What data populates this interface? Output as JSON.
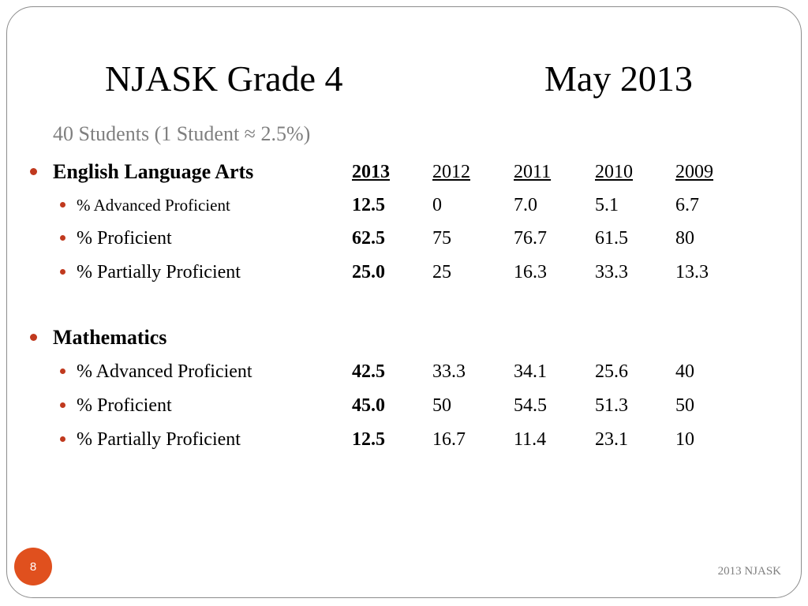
{
  "slide": {
    "title_left": "NJASK Grade 4",
    "title_right": "May 2013",
    "subtitle": "40 Students (1 Student ≈ 2.5%)",
    "page_number": "8",
    "footer": "2013 NJASK",
    "accent_color": "#e0501e",
    "bullet_color": "#c0391e"
  },
  "sections": [
    {
      "label": "English Language Arts",
      "years": [
        "2013",
        "2012",
        "2011",
        "2010",
        "2009"
      ],
      "rows": [
        {
          "label": "% Advanced Proficient",
          "values": [
            "12.5",
            "0",
            "7.0",
            "5.1",
            "6.7"
          ]
        },
        {
          "label": "% Proficient",
          "values": [
            "62.5",
            "75",
            "76.7",
            "61.5",
            "80"
          ]
        },
        {
          "label": "% Partially Proficient",
          "values": [
            "25.0",
            "25",
            "16.3",
            "33.3",
            "13.3"
          ]
        }
      ]
    },
    {
      "label": "Mathematics",
      "rows": [
        {
          "label": "% Advanced Proficient",
          "values": [
            "42.5",
            "33.3",
            "34.1",
            "25.6",
            "40"
          ]
        },
        {
          "label": "% Proficient",
          "values": [
            "45.0",
            "50",
            "54.5",
            "51.3",
            "50"
          ]
        },
        {
          "label": "% Partially Proficient",
          "values": [
            "12.5",
            "16.7",
            "11.4",
            "23.1",
            "10"
          ]
        }
      ]
    }
  ]
}
